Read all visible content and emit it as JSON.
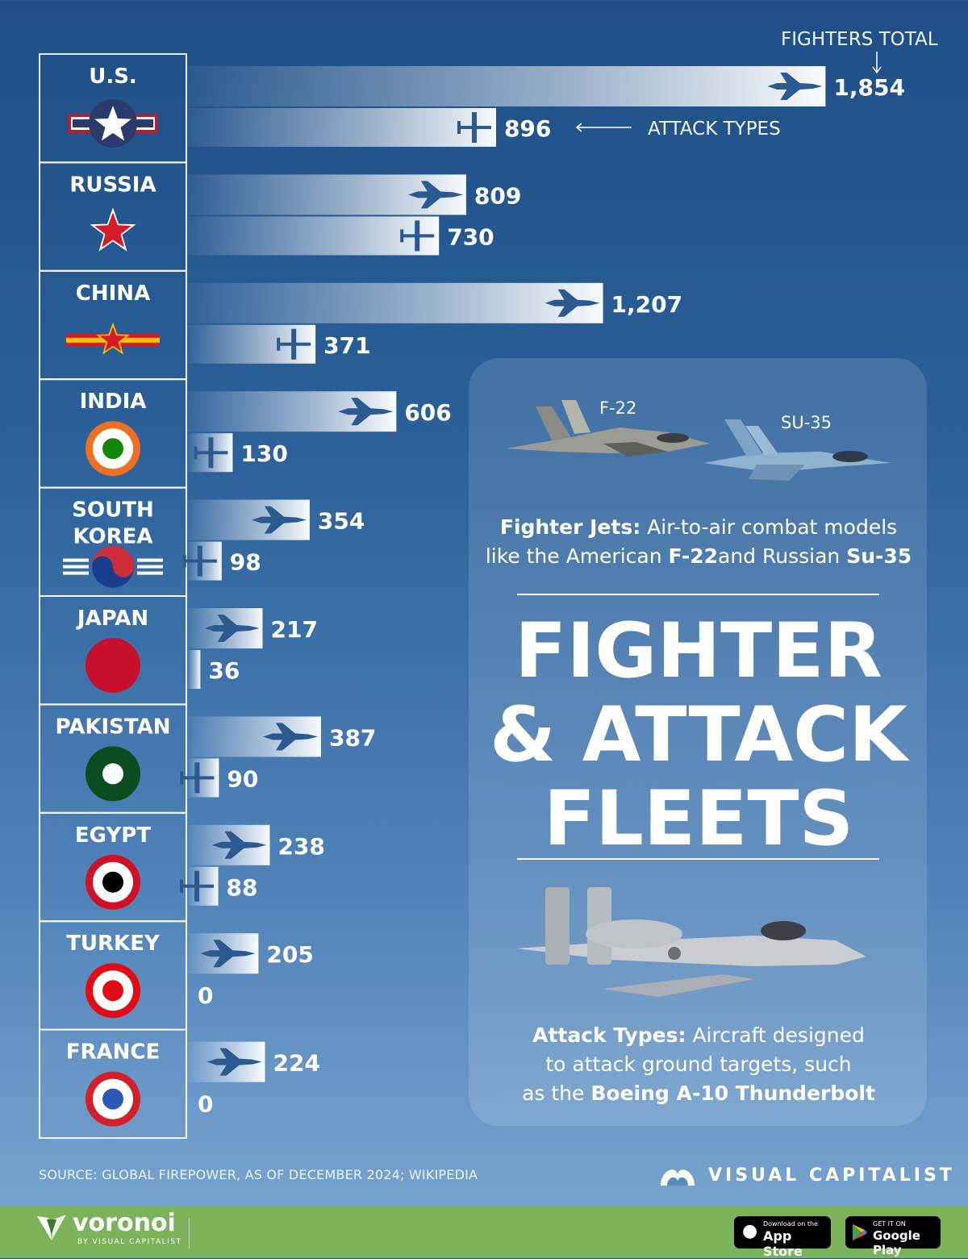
{
  "annotations": {
    "fighters_total": "FIGHTERS TOTAL",
    "attack_types": "ATTACK TYPES"
  },
  "chart_data": {
    "type": "bar",
    "categories": [
      "U.S.",
      "RUSSIA",
      "CHINA",
      "INDIA",
      "SOUTH KOREA",
      "JAPAN",
      "PAKISTAN",
      "EGYPT",
      "TURKEY",
      "FRANCE"
    ],
    "series": [
      {
        "values": [
          1854,
          809,
          1207,
          606,
          354,
          217,
          387,
          238,
          205,
          224
        ],
        "labels": [
          "1,854",
          "809",
          "1,207",
          "606",
          "354",
          "217",
          "387",
          "238",
          "205",
          "224"
        ]
      },
      {
        "values": [
          896,
          730,
          371,
          130,
          98,
          36,
          90,
          88,
          0,
          0
        ],
        "labels": [
          "896",
          "730",
          "371",
          "130",
          "98",
          "36",
          "90",
          "88",
          "0",
          "0"
        ]
      }
    ]
  },
  "card": {
    "f22_label": "F-22",
    "su35_label": "SU-35",
    "fighter_jets": {
      "heading": "Fighter Jets:",
      "text1": " Air-to-air combat models",
      "text2": "like the American ",
      "f22": "F-22",
      "text3": "and Russian ",
      "su35": "Su-35"
    },
    "title_line1": "FIGHTER",
    "title_line2": "& ATTACK",
    "title_line3": "FLEETS",
    "attack_types": {
      "heading": "Attack Types:",
      "text1": " Aircraft designed",
      "text2": "to attack ground targets, such",
      "text3": "as the ",
      "a10": "Boeing A-10 Thunderbolt"
    }
  },
  "source": "SOURCE: GLOBAL FIREPOWER, AS OF DECEMBER 2024; WIKIPEDIA",
  "brand": {
    "visual_capitalist": "VISUAL CAPITALIST",
    "voronoi": "voronoi",
    "voronoi_sub": "BY VISUAL CAPITALIST",
    "appstore_small": "Download on the",
    "appstore_big": "App Store",
    "googleplay_small": "GET IT ON",
    "googleplay_big": "Google Play"
  },
  "colors": {
    "footer": "#7bb25a",
    "plane": "#2a5a90",
    "background": "#2b6099"
  }
}
